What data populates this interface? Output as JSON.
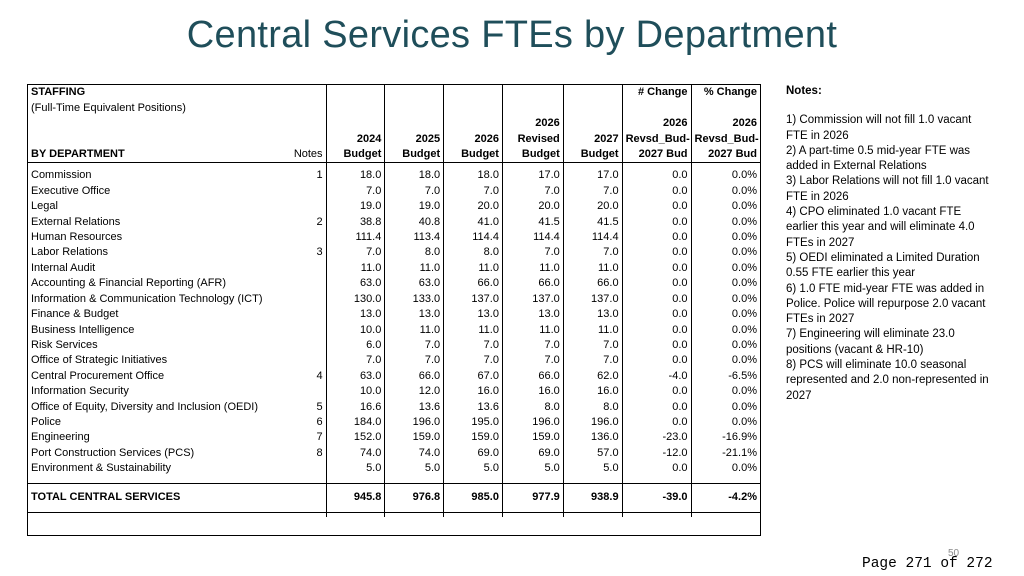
{
  "title": "Central Services FTEs by Department",
  "table": {
    "staffing_label": "STAFFING",
    "subtitle": "(Full-Time Equivalent Positions)",
    "by_department_label": "BY DEPARTMENT",
    "notes_label": "Notes",
    "columns": [
      {
        "line1": "",
        "line2": "",
        "line3": "2024",
        "line4": "Budget"
      },
      {
        "line1": "",
        "line2": "",
        "line3": "2025",
        "line4": "Budget"
      },
      {
        "line1": "",
        "line2": "",
        "line3": "2026",
        "line4": "Budget"
      },
      {
        "line1": "",
        "line2": "2026",
        "line3": "Revised",
        "line4": "Budget"
      },
      {
        "line1": "",
        "line2": "",
        "line3": "2027",
        "line4": "Budget"
      },
      {
        "line1": "# Change",
        "line2": "2026",
        "line3": "Revsd_Bud-",
        "line4": "2027 Bud"
      },
      {
        "line1": "% Change",
        "line2": "2026",
        "line3": "Revsd_Bud-",
        "line4": "2027 Bud"
      }
    ],
    "rows": [
      {
        "dept": "Commission",
        "note": "1",
        "v": [
          "18.0",
          "18.0",
          "18.0",
          "17.0",
          "17.0",
          "0.0",
          "0.0%"
        ]
      },
      {
        "dept": "Executive Office",
        "note": "",
        "v": [
          "7.0",
          "7.0",
          "7.0",
          "7.0",
          "7.0",
          "0.0",
          "0.0%"
        ]
      },
      {
        "dept": "Legal",
        "note": "",
        "v": [
          "19.0",
          "19.0",
          "20.0",
          "20.0",
          "20.0",
          "0.0",
          "0.0%"
        ]
      },
      {
        "dept": "External Relations",
        "note": "2",
        "v": [
          "38.8",
          "40.8",
          "41.0",
          "41.5",
          "41.5",
          "0.0",
          "0.0%"
        ]
      },
      {
        "dept": "Human Resources",
        "note": "",
        "v": [
          "111.4",
          "113.4",
          "114.4",
          "114.4",
          "114.4",
          "0.0",
          "0.0%"
        ]
      },
      {
        "dept": "Labor Relations",
        "note": "3",
        "v": [
          "7.0",
          "8.0",
          "8.0",
          "7.0",
          "7.0",
          "0.0",
          "0.0%"
        ]
      },
      {
        "dept": "Internal Audit",
        "note": "",
        "v": [
          "11.0",
          "11.0",
          "11.0",
          "11.0",
          "11.0",
          "0.0",
          "0.0%"
        ]
      },
      {
        "dept": "Accounting & Financial Reporting (AFR)",
        "note": "",
        "v": [
          "63.0",
          "63.0",
          "66.0",
          "66.0",
          "66.0",
          "0.0",
          "0.0%"
        ]
      },
      {
        "dept": "Information & Communication Technology (ICT)",
        "note": "",
        "v": [
          "130.0",
          "133.0",
          "137.0",
          "137.0",
          "137.0",
          "0.0",
          "0.0%"
        ]
      },
      {
        "dept": "Finance & Budget",
        "note": "",
        "v": [
          "13.0",
          "13.0",
          "13.0",
          "13.0",
          "13.0",
          "0.0",
          "0.0%"
        ]
      },
      {
        "dept": "Business Intelligence",
        "note": "",
        "v": [
          "10.0",
          "11.0",
          "11.0",
          "11.0",
          "11.0",
          "0.0",
          "0.0%"
        ]
      },
      {
        "dept": "Risk Services",
        "note": "",
        "v": [
          "6.0",
          "7.0",
          "7.0",
          "7.0",
          "7.0",
          "0.0",
          "0.0%"
        ]
      },
      {
        "dept": "Office of Strategic Initiatives",
        "note": "",
        "v": [
          "7.0",
          "7.0",
          "7.0",
          "7.0",
          "7.0",
          "0.0",
          "0.0%"
        ]
      },
      {
        "dept": "Central Procurement Office",
        "note": "4",
        "v": [
          "63.0",
          "66.0",
          "67.0",
          "66.0",
          "62.0",
          "-4.0",
          "-6.5%"
        ]
      },
      {
        "dept": "Information Security",
        "note": "",
        "v": [
          "10.0",
          "12.0",
          "16.0",
          "16.0",
          "16.0",
          "0.0",
          "0.0%"
        ]
      },
      {
        "dept": "Office of Equity, Diversity and Inclusion (OEDI)",
        "note": "5",
        "v": [
          "16.6",
          "13.6",
          "13.6",
          "8.0",
          "8.0",
          "0.0",
          "0.0%"
        ]
      },
      {
        "dept": "Police",
        "note": "6",
        "v": [
          "184.0",
          "196.0",
          "195.0",
          "196.0",
          "196.0",
          "0.0",
          "0.0%"
        ]
      },
      {
        "dept": "Engineering",
        "note": "7",
        "v": [
          "152.0",
          "159.0",
          "159.0",
          "159.0",
          "136.0",
          "-23.0",
          "-16.9%"
        ]
      },
      {
        "dept": "Port Construction Services (PCS)",
        "note": "8",
        "v": [
          "74.0",
          "74.0",
          "69.0",
          "69.0",
          "57.0",
          "-12.0",
          "-21.1%"
        ]
      },
      {
        "dept": "Environment & Sustainability",
        "note": "",
        "v": [
          "5.0",
          "5.0",
          "5.0",
          "5.0",
          "5.0",
          "0.0",
          "0.0%"
        ]
      }
    ],
    "total": {
      "dept": "TOTAL CENTRAL SERVICES",
      "v": [
        "945.8",
        "976.8",
        "985.0",
        "977.9",
        "938.9",
        "-39.0",
        "-4.2%"
      ]
    }
  },
  "notes": {
    "title": "Notes:",
    "items": [
      "1) Commission will not fill 1.0 vacant FTE in 2026",
      "2) A part-time 0.5 mid-year FTE was added in External Relations",
      "3) Labor Relations will not fill 1.0 vacant FTE in 2026",
      "4) CPO  eliminated 1.0 vacant FTE earlier this year and will eliminate 4.0 FTEs in 2027",
      "5) OEDI eliminated a Limited Duration 0.55 FTE earlier this year",
      "6) 1.0 FTE mid-year FTE was added in Police. Police will repurpose 2.0 vacant FTEs in 2027",
      "7) Engineering will eliminate 23.0 positions (vacant & HR-10)",
      "8) PCS will eliminate 10.0 seasonal represented and 2.0 non-represented in 2027"
    ]
  },
  "slide_number": "50",
  "page_footer": "Page 271 of 272"
}
